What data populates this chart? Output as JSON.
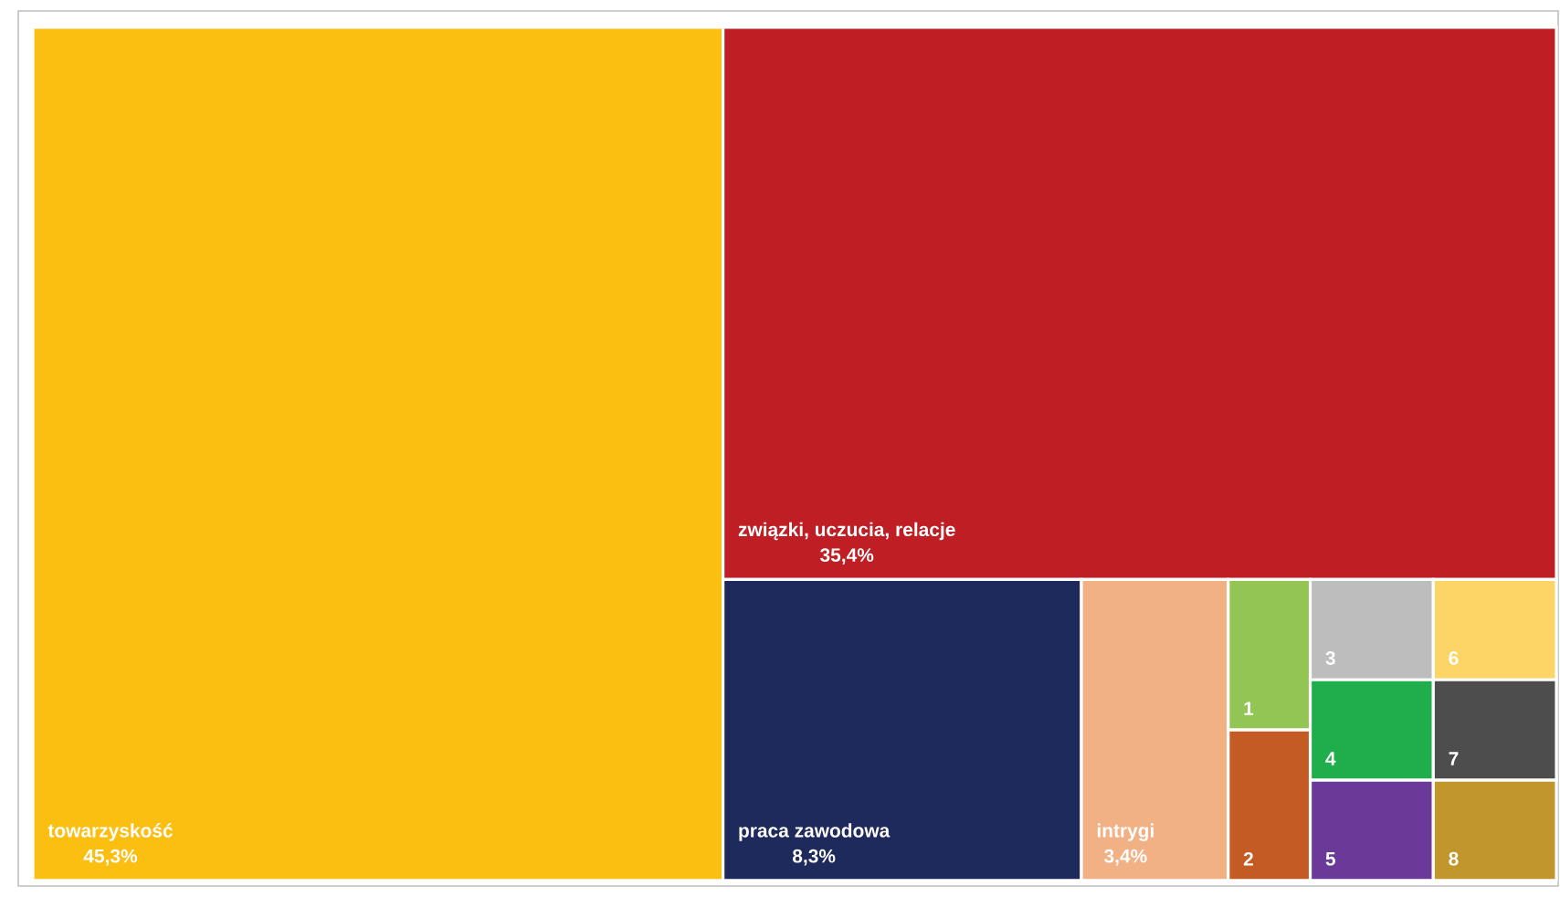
{
  "chart_data": {
    "type": "other",
    "categories": [
      "towarzyskość",
      "związki, uczucia, relacje",
      "praca zawodowa",
      "intrygi",
      "1",
      "2",
      "3",
      "4",
      "5",
      "6",
      "7",
      "8"
    ],
    "values": [
      45.3,
      35.4,
      8.3,
      3.4,
      null,
      null,
      null,
      null,
      null,
      null,
      null,
      null
    ],
    "value_labels": [
      "45,3%",
      "35,4%",
      "8,3%",
      "3,4%",
      null,
      null,
      null,
      null,
      null,
      null,
      null,
      null
    ],
    "colors": [
      "#fbbf12",
      "#bf1e24",
      "#1e2a5c",
      "#f2b185",
      "#92c554",
      "#c45a24",
      "#bdbdbd",
      "#1fae4b",
      "#6b3a98",
      "#fdd566",
      "#4d4d4d",
      "#c0962d"
    ]
  }
}
